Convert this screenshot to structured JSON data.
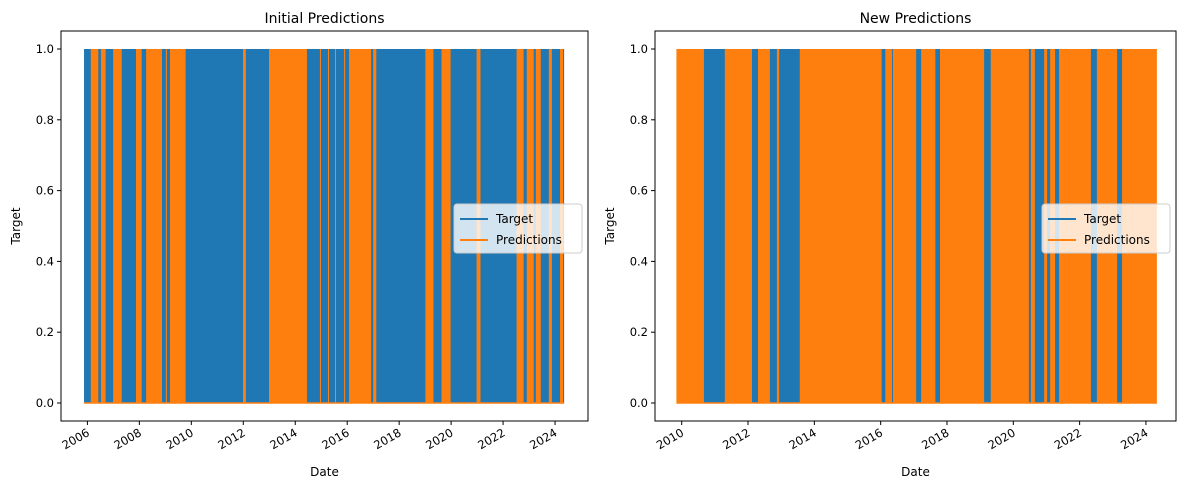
{
  "colors": {
    "target": "#1f77b4",
    "predictions": "#ff7f0e"
  },
  "chart_data": [
    {
      "type": "line",
      "title": "Initial Predictions",
      "xlabel": "Date",
      "ylabel": "Target",
      "ylim": [
        0,
        1
      ],
      "yticks": [
        "0.0",
        "0.2",
        "0.4",
        "0.6",
        "0.8",
        "1.0"
      ],
      "xticks": [
        "2006",
        "2008",
        "2010",
        "2012",
        "2014",
        "2016",
        "2018",
        "2020",
        "2022",
        "2024"
      ],
      "x_range": [
        2005.87,
        2024.35
      ],
      "legend": {
        "placement": "center-right",
        "entries": [
          "Target",
          "Predictions"
        ]
      },
      "note_values": "binary series (0/1); Target alternates 0/1 throughout; intervals where Predictions alternates 0/1 listed below (elsewhere Predictions = 0)",
      "base_series": "Target",
      "overlay_series": "Predictions",
      "overlay_intervals": [
        [
          2006.13,
          2006.42
        ],
        [
          2006.52,
          2006.7
        ],
        [
          2006.99,
          2007.32
        ],
        [
          2007.87,
          2008.09
        ],
        [
          2008.26,
          2008.87
        ],
        [
          2009.02,
          2009.06
        ],
        [
          2009.18,
          2009.78
        ],
        [
          2011.99,
          2012.1
        ],
        [
          2012.99,
          2014.45
        ],
        [
          2014.95,
          2014.99
        ],
        [
          2015.26,
          2015.3
        ],
        [
          2015.53,
          2015.57
        ],
        [
          2015.88,
          2015.92
        ],
        [
          2016.07,
          2016.92
        ],
        [
          2017.0,
          2017.12
        ],
        [
          2019.01,
          2019.32
        ],
        [
          2019.63,
          2019.98
        ],
        [
          2020.98,
          2021.13
        ],
        [
          2022.52,
          2022.79
        ],
        [
          2022.91,
          2023.18
        ],
        [
          2023.26,
          2023.45
        ],
        [
          2023.76,
          2023.88
        ],
        [
          2024.19,
          2024.31
        ]
      ]
    },
    {
      "type": "line",
      "title": "New Predictions",
      "xlabel": "Date",
      "ylabel": "Target",
      "ylim": [
        0,
        1
      ],
      "yticks": [
        "0.0",
        "0.2",
        "0.4",
        "0.6",
        "0.8",
        "1.0"
      ],
      "xticks": [
        "2010",
        "2012",
        "2014",
        "2016",
        "2018",
        "2020",
        "2022",
        "2024"
      ],
      "x_range": [
        2009.84,
        2024.33
      ],
      "legend": {
        "placement": "center-right",
        "entries": [
          "Target",
          "Predictions"
        ]
      },
      "note_values": "binary series (0/1); Predictions alternates 0/1 throughout except the intervals listed below, where only Target alternates",
      "base_series": "Predictions",
      "overlay_series": "Target",
      "overlay_intervals": [
        [
          2010.67,
          2011.3
        ],
        [
          2012.12,
          2012.3
        ],
        [
          2012.66,
          2012.87
        ],
        [
          2012.94,
          2013.56
        ],
        [
          2016.03,
          2016.14
        ],
        [
          2016.34,
          2016.37
        ],
        [
          2017.07,
          2017.22
        ],
        [
          2017.65,
          2017.79
        ],
        [
          2019.12,
          2019.32
        ],
        [
          2020.47,
          2020.53
        ],
        [
          2020.65,
          2020.93
        ],
        [
          2021.02,
          2021.11
        ],
        [
          2021.26,
          2021.38
        ],
        [
          2022.34,
          2022.52
        ],
        [
          2023.13,
          2023.28
        ]
      ]
    }
  ]
}
